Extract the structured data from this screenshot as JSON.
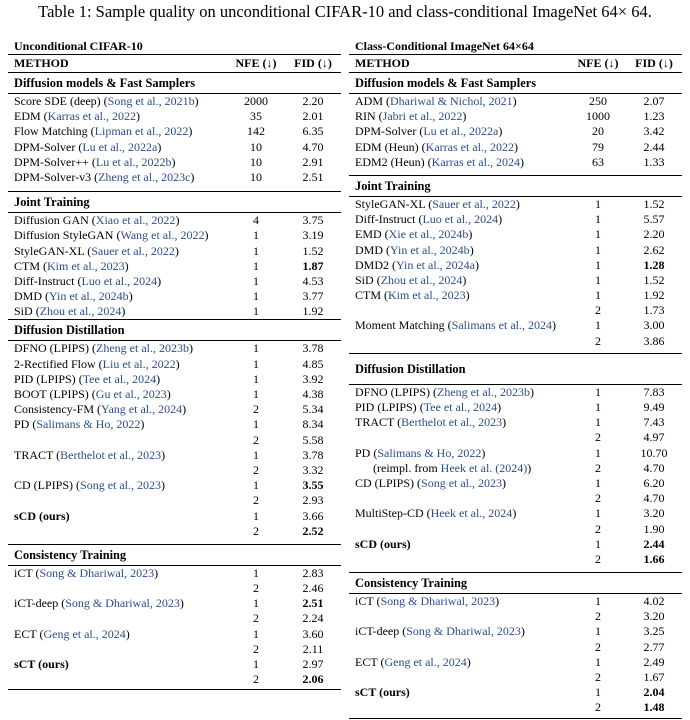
{
  "caption": "Table 1: Sample quality on unconditional CIFAR-10 and class-conditional ImageNet 64× 64.",
  "left": {
    "title": "Unconditional CIFAR-10",
    "header": {
      "method": "METHOD",
      "nfe": "NFE (↓)",
      "fid": "FID (↓)"
    },
    "sections": {
      "s1": {
        "title": "Diffusion models & Fast Samplers",
        "rows": [
          {
            "m": "Score SDE (deep)",
            "c": "Song et al., 2021b",
            "n": "2000",
            "f": "2.20"
          },
          {
            "m": "EDM",
            "c": "Karras et al., 2022",
            "n": "35",
            "f": "2.01"
          },
          {
            "m": "Flow Matching",
            "c": "Lipman et al., 2022",
            "n": "142",
            "f": "6.35"
          },
          {
            "m": "DPM-Solver",
            "c": "Lu et al., 2022a",
            "n": "10",
            "f": "4.70"
          },
          {
            "m": "DPM-Solver++",
            "c": "Lu et al., 2022b",
            "n": "10",
            "f": "2.91"
          },
          {
            "m": "DPM-Solver-v3",
            "c": "Zheng et al., 2023c",
            "n": "10",
            "f": "2.51"
          }
        ]
      },
      "s2": {
        "title": "Joint Training",
        "rows": [
          {
            "m": "Diffusion GAN",
            "c": "Xiao et al., 2022",
            "n": "4",
            "f": "3.75"
          },
          {
            "m": "Diffusion StyleGAN",
            "c": "Wang et al., 2022",
            "n": "1",
            "f": "3.19"
          },
          {
            "m": "StyleGAN-XL",
            "c": "Sauer et al., 2022",
            "n": "1",
            "f": "1.52"
          },
          {
            "m": "CTM",
            "c": "Kim et al., 2023",
            "n": "1",
            "f": "1.87"
          },
          {
            "m": "Diff-Instruct",
            "c": "Luo et al., 2024",
            "n": "1",
            "f": "4.53"
          },
          {
            "m": "DMD",
            "c": "Yin et al., 2024b",
            "n": "1",
            "f": "3.77"
          },
          {
            "m": "SiD",
            "c": "Zhou et al., 2024",
            "n": "1",
            "f": "1.92"
          }
        ]
      },
      "s3": {
        "title": "Diffusion Distillation",
        "rows": [
          {
            "m": "DFNO (LPIPS)",
            "c": "Zheng et al., 2023b",
            "n": "1",
            "f": "3.78"
          },
          {
            "m": "2-Rectified Flow",
            "c": "Liu et al., 2022",
            "n": "1",
            "f": "4.85"
          },
          {
            "m": "PID (LPIPS)",
            "c": "Tee et al., 2024",
            "n": "1",
            "f": "3.92"
          },
          {
            "m": "BOOT (LPIPS)",
            "c": "Gu et al., 2023",
            "n": "1",
            "f": "4.38"
          },
          {
            "m": "Consistency-FM",
            "c": "Yang et al., 2024",
            "n": "2",
            "f": "5.34"
          },
          {
            "m": "PD",
            "c": "Salimans & Ho, 2022",
            "n": "1",
            "f": "8.34"
          },
          {
            "m": "",
            "c": "",
            "n": "2",
            "f": "5.58"
          },
          {
            "m": "TRACT",
            "c": "Berthelot et al., 2023",
            "n": "1",
            "f": "3.78"
          },
          {
            "m": "",
            "c": "",
            "n": "2",
            "f": "3.32"
          },
          {
            "m": "CD (LPIPS)",
            "c": "Song et al., 2023",
            "n": "1",
            "f": "3.55"
          },
          {
            "m": "",
            "c": "",
            "n": "2",
            "f": "2.93"
          },
          {
            "m": "sCD (ours)",
            "c": "",
            "n": "1",
            "f": "3.66"
          },
          {
            "m": "",
            "c": "",
            "n": "2",
            "f": "2.52"
          }
        ]
      },
      "s4": {
        "title": "Consistency Training",
        "rows": [
          {
            "m": "iCT",
            "c": "Song & Dhariwal, 2023",
            "n": "1",
            "f": "2.83"
          },
          {
            "m": "",
            "c": "",
            "n": "2",
            "f": "2.46"
          },
          {
            "m": "iCT-deep",
            "c": "Song & Dhariwal, 2023",
            "n": "1",
            "f": "2.51"
          },
          {
            "m": "",
            "c": "",
            "n": "2",
            "f": "2.24"
          },
          {
            "m": "ECT",
            "c": "Geng et al., 2024",
            "n": "1",
            "f": "3.60"
          },
          {
            "m": "",
            "c": "",
            "n": "2",
            "f": "2.11"
          },
          {
            "m": "sCT (ours)",
            "c": "",
            "n": "1",
            "f": "2.97"
          },
          {
            "m": "",
            "c": "",
            "n": "2",
            "f": "2.06"
          }
        ]
      }
    }
  },
  "right": {
    "title": "Class-Conditional ImageNet 64×64",
    "header": {
      "method": "METHOD",
      "nfe": "NFE (↓)",
      "fid": "FID (↓)"
    },
    "sections": {
      "s1": {
        "title": "Diffusion models & Fast Samplers",
        "rows": [
          {
            "m": "ADM",
            "c": "Dhariwal & Nichol, 2021",
            "n": "250",
            "f": "2.07"
          },
          {
            "m": "RIN",
            "c": "Jabri et al., 2022",
            "n": "1000",
            "f": "1.23"
          },
          {
            "m": "DPM-Solver",
            "c": "Lu et al., 2022a",
            "n": "20",
            "f": "3.42"
          },
          {
            "m": "EDM (Heun)",
            "c": "Karras et al., 2022",
            "n": "79",
            "f": "2.44"
          },
          {
            "m": "EDM2 (Heun)",
            "c": "Karras et al., 2024",
            "n": "63",
            "f": "1.33"
          }
        ]
      },
      "s2": {
        "title": "Joint Training",
        "rows": [
          {
            "m": "StyleGAN-XL",
            "c": "Sauer et al., 2022",
            "n": "1",
            "f": "1.52"
          },
          {
            "m": "Diff-Instruct",
            "c": "Luo et al., 2024",
            "n": "1",
            "f": "5.57"
          },
          {
            "m": "EMD",
            "c": "Xie et al., 2024b",
            "n": "1",
            "f": "2.20"
          },
          {
            "m": "DMD",
            "c": "Yin et al., 2024b",
            "n": "1",
            "f": "2.62"
          },
          {
            "m": "DMD2",
            "c": "Yin et al., 2024a",
            "n": "1",
            "f": "1.28"
          },
          {
            "m": "SiD",
            "c": "Zhou et al., 2024",
            "n": "1",
            "f": "1.52"
          },
          {
            "m": "CTM",
            "c": "Kim et al., 2023",
            "n": "1",
            "f": "1.92"
          },
          {
            "m": "",
            "c": "",
            "n": "2",
            "f": "1.73"
          },
          {
            "m": "Moment Matching",
            "c": "Salimans et al., 2024",
            "n": "1",
            "f": "3.00"
          },
          {
            "m": "",
            "c": "",
            "n": "2",
            "f": "3.86"
          }
        ]
      },
      "s3": {
        "title": "Diffusion Distillation",
        "rows": [
          {
            "m": "DFNO (LPIPS)",
            "c": "Zheng et al., 2023b",
            "n": "1",
            "f": "7.83"
          },
          {
            "m": "PID (LPIPS)",
            "c": "Tee et al., 2024",
            "n": "1",
            "f": "9.49"
          },
          {
            "m": "TRACT",
            "c": "Berthelot et al., 2023",
            "n": "1",
            "f": "7.43"
          },
          {
            "m": "",
            "c": "",
            "n": "2",
            "f": "4.97"
          },
          {
            "m": "PD",
            "c": "Salimans & Ho, 2022",
            "n": "1",
            "f": "10.70"
          },
          {
            "m": "(reimpl. from",
            "c": "Heek et al. (2024)",
            "n": "2",
            "f": "4.70",
            "ind": true,
            "after": ")"
          },
          {
            "m": "CD (LPIPS)",
            "c": "Song et al., 2023",
            "n": "1",
            "f": "6.20"
          },
          {
            "m": "",
            "c": "",
            "n": "2",
            "f": "4.70"
          },
          {
            "m": "MultiStep-CD",
            "c": "Heek et al., 2024",
            "n": "1",
            "f": "3.20"
          },
          {
            "m": "",
            "c": "",
            "n": "2",
            "f": "1.90"
          },
          {
            "m": "sCD (ours)",
            "c": "",
            "n": "1",
            "f": "2.44"
          },
          {
            "m": "",
            "c": "",
            "n": "2",
            "f": "1.66"
          }
        ]
      },
      "s4": {
        "title": "Consistency Training",
        "rows": [
          {
            "m": "iCT",
            "c": "Song & Dhariwal, 2023",
            "n": "1",
            "f": "4.02"
          },
          {
            "m": "",
            "c": "",
            "n": "2",
            "f": "3.20"
          },
          {
            "m": "iCT-deep",
            "c": "Song & Dhariwal, 2023",
            "n": "1",
            "f": "3.25"
          },
          {
            "m": "",
            "c": "",
            "n": "2",
            "f": "2.77"
          },
          {
            "m": "ECT",
            "c": "Geng et al., 2024",
            "n": "1",
            "f": "2.49"
          },
          {
            "m": "",
            "c": "",
            "n": "2",
            "f": "1.67"
          },
          {
            "m": "sCT (ours)",
            "c": "",
            "n": "1",
            "f": "2.04"
          },
          {
            "m": "",
            "c": "",
            "n": "2",
            "f": "1.48"
          }
        ]
      }
    }
  }
}
